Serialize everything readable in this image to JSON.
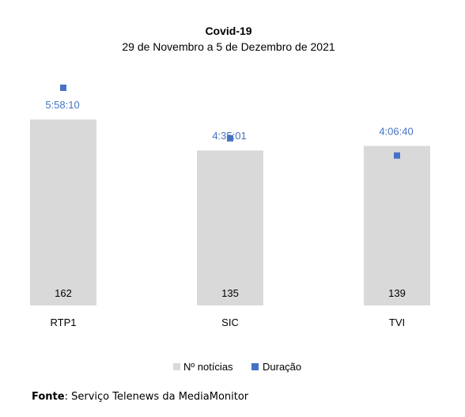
{
  "chart_data": {
    "type": "bar",
    "title": "Covid-19",
    "subtitle": "29 de Novembro a 5 de Dezembro de 2021",
    "categories": [
      "RTP1",
      "SIC",
      "TVI"
    ],
    "series": [
      {
        "name": "Nº notícias",
        "type": "bar",
        "values": [
          162,
          135,
          139
        ],
        "color": "#d9d9d9"
      },
      {
        "name": "Duração",
        "type": "scatter",
        "values_seconds": [
          21490,
          16501,
          14800
        ],
        "labels": [
          "5:58:10",
          "4:35:01",
          "4:06:40"
        ],
        "color": "#4472c4"
      }
    ],
    "legend": "bottom",
    "grid": false
  },
  "source": {
    "label": "Fonte",
    "text": "Serviço Telenews da MediaMonitor"
  }
}
